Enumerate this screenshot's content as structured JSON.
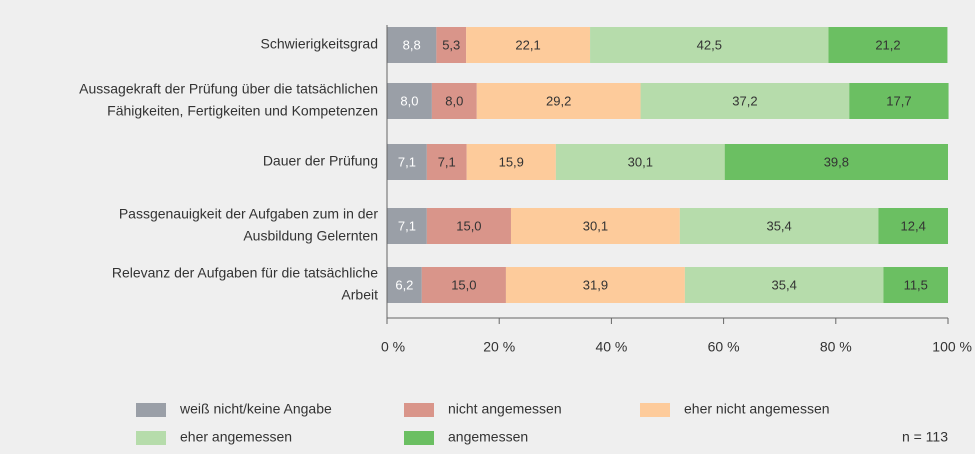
{
  "chart_data": {
    "type": "stacked-bar-horizontal",
    "categories": [
      [
        "Schwierigkeitsgrad"
      ],
      [
        "Aussagekraft der Prüfung über die tatsächlichen",
        "Fähigkeiten, Fertigkeiten und Kompetenzen"
      ],
      [
        "Dauer der Prüfung"
      ],
      [
        "Passgenauigkeit der Aufgaben zum in der",
        "Ausbildung Gelernten"
      ],
      [
        "Relevanz der Aufgaben für die tatsächliche",
        "Arbeit"
      ]
    ],
    "series": [
      {
        "name": "weiß nicht/keine Angabe",
        "color": "#9a9fa7",
        "values": [
          8.8,
          8.0,
          7.1,
          7.1,
          6.2
        ],
        "value_labels": [
          "8,8",
          "8,0",
          "7,1",
          "7,1",
          "6,2"
        ]
      },
      {
        "name": "nicht angemessen",
        "color": "#d9958a",
        "values": [
          5.3,
          8.0,
          7.1,
          15.0,
          15.0
        ],
        "value_labels": [
          "5,3",
          "8,0",
          "7,1",
          "15,0",
          "15,0"
        ]
      },
      {
        "name": "eher nicht angemessen",
        "color": "#fdcb9b",
        "values": [
          22.1,
          29.2,
          15.9,
          30.1,
          31.9
        ],
        "value_labels": [
          "22,1",
          "29,2",
          "15,9",
          "30,1",
          "31,9"
        ]
      },
      {
        "name": "eher angemessen",
        "color": "#b6dcab",
        "values": [
          42.5,
          37.2,
          30.1,
          35.4,
          35.4
        ],
        "value_labels": [
          "42,5",
          "37,2",
          "30,1",
          "35,4",
          "35,4"
        ]
      },
      {
        "name": "angemessen",
        "color": "#6bbf62",
        "values": [
          21.2,
          17.7,
          39.8,
          12.4,
          11.5
        ],
        "value_labels": [
          "21,2",
          "17,7",
          "39,8",
          "12,4",
          "11,5"
        ]
      }
    ],
    "xlim": [
      0,
      100
    ],
    "xticks": [
      {
        "value": 0,
        "label": "0 %"
      },
      {
        "value": 20,
        "label": "20 %"
      },
      {
        "value": 40,
        "label": "40 %"
      },
      {
        "value": 60,
        "label": "60 %"
      },
      {
        "value": 80,
        "label": "80 %"
      },
      {
        "value": 100,
        "label": "100 %"
      }
    ],
    "annotation": "n = 113"
  }
}
